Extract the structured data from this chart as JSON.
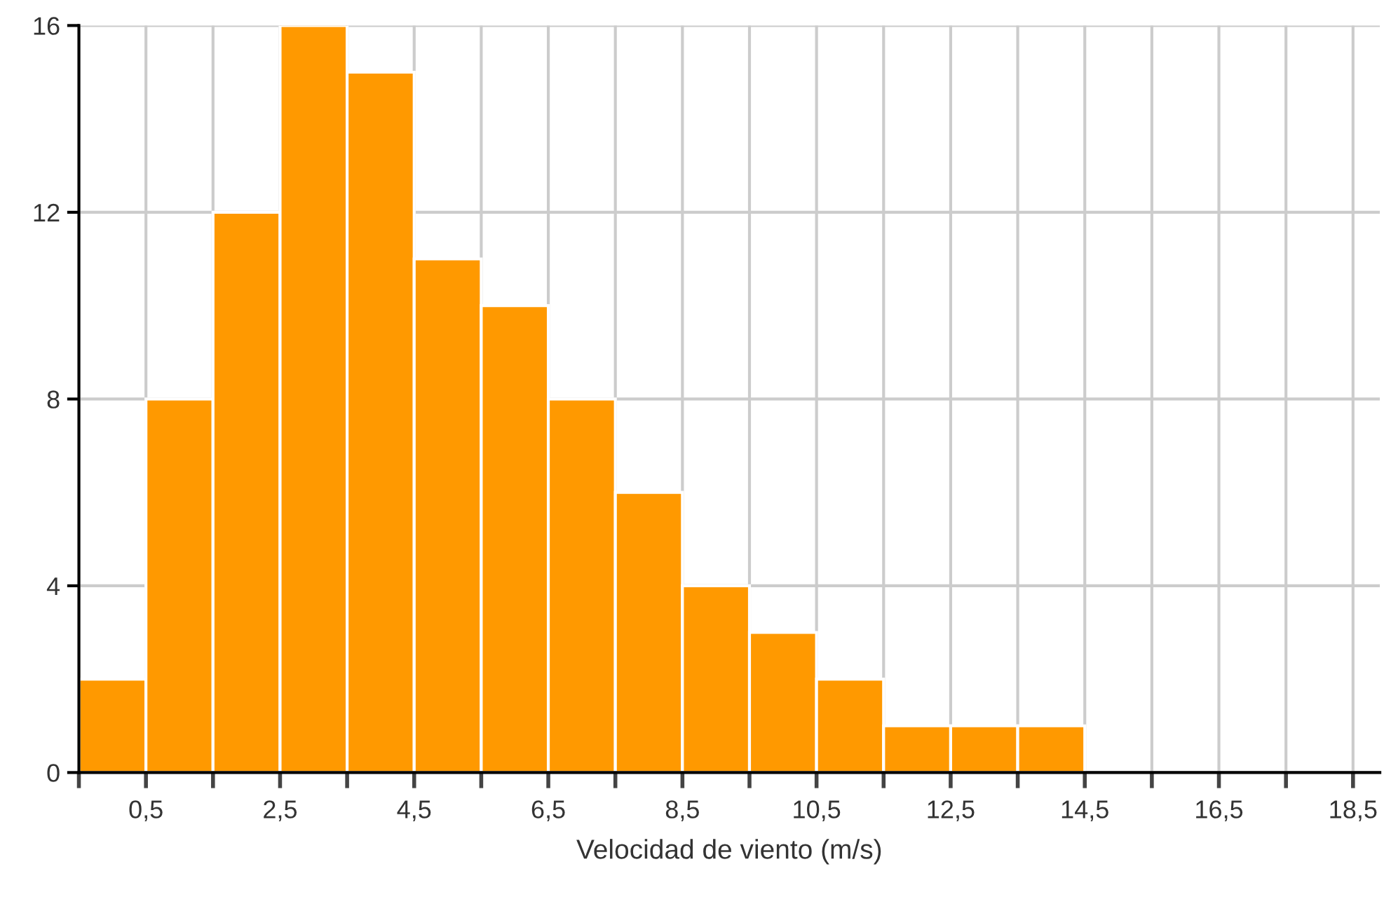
{
  "chart_data": {
    "type": "histogram",
    "xlabel": "Velocidad de viento (m/s)",
    "bins": [
      -0.5,
      0.5,
      1.5,
      2.5,
      3.5,
      4.5,
      5.5,
      6.5,
      7.5,
      8.5,
      9.5,
      10.5,
      11.5,
      12.5,
      13.5,
      14.5
    ],
    "values": [
      2,
      8,
      12,
      16,
      15,
      11,
      10,
      8,
      6,
      4,
      3,
      2,
      1,
      1,
      1
    ],
    "color": "#ff9900",
    "xlim": [
      -0.5,
      18.9
    ],
    "ylim": [
      0,
      16
    ],
    "xticks": [
      {
        "value": -0.5,
        "label": null
      },
      {
        "value": 0.5,
        "label": "0,5"
      },
      {
        "value": 1.5,
        "label": null
      },
      {
        "value": 2.5,
        "label": "2,5"
      },
      {
        "value": 3.5,
        "label": null
      },
      {
        "value": 4.5,
        "label": "4,5"
      },
      {
        "value": 5.5,
        "label": null
      },
      {
        "value": 6.5,
        "label": "6,5"
      },
      {
        "value": 7.5,
        "label": null
      },
      {
        "value": 8.5,
        "label": "8,5"
      },
      {
        "value": 9.5,
        "label": null
      },
      {
        "value": 10.5,
        "label": "10,5"
      },
      {
        "value": 11.5,
        "label": null
      },
      {
        "value": 12.5,
        "label": "12,5"
      },
      {
        "value": 13.5,
        "label": null
      },
      {
        "value": 14.5,
        "label": "14,5"
      },
      {
        "value": 15.5,
        "label": null
      },
      {
        "value": 16.5,
        "label": "16,5"
      },
      {
        "value": 17.5,
        "label": null
      },
      {
        "value": 18.5,
        "label": "18,5"
      }
    ],
    "yticks": [
      0,
      4,
      8,
      12,
      16
    ],
    "grid": true
  }
}
